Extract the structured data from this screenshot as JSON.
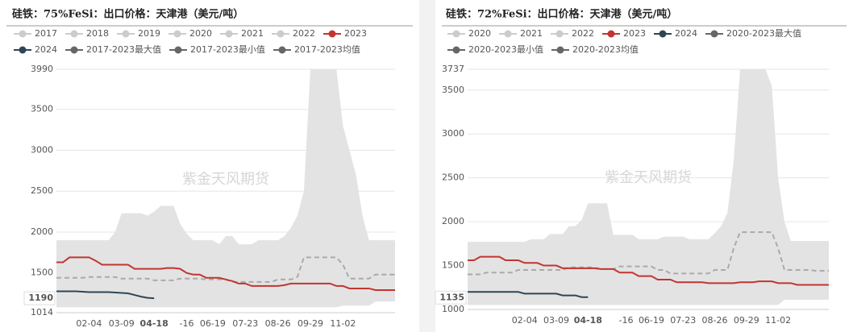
{
  "chart_data": [
    {
      "type": "line",
      "title": "硅铁：75%FeSi：出口价格：天津港（美元/吨）",
      "watermark": "紫金天风期货",
      "band_color": "#e3e3e3",
      "mean_color": "#aaaaaa",
      "grid": true,
      "ylim": [
        1014,
        3990
      ],
      "yticks": [
        1014,
        1500,
        2000,
        2500,
        3000,
        3500,
        3990
      ],
      "y_pointer": 1190,
      "x_pointer": "04-18",
      "categories": [
        null,
        null,
        null,
        null,
        null,
        "02-04",
        null,
        null,
        null,
        null,
        "03-09",
        null,
        null,
        null,
        null,
        "04-18",
        null,
        null,
        null,
        null,
        "-16",
        null,
        null,
        null,
        "06-19",
        null,
        null,
        null,
        null,
        "07-23",
        null,
        null,
        null,
        null,
        "08-26",
        null,
        null,
        null,
        null,
        "09-29",
        null,
        null,
        null,
        null,
        "11-02",
        null,
        null,
        null,
        null,
        null,
        null,
        null,
        null
      ],
      "series": [
        {
          "name": "2017",
          "color": "#cccccc",
          "active": false
        },
        {
          "name": "2018",
          "color": "#cccccc",
          "active": false
        },
        {
          "name": "2019",
          "color": "#cccccc",
          "active": false
        },
        {
          "name": "2020",
          "color": "#cccccc",
          "active": false
        },
        {
          "name": "2021",
          "color": "#cccccc",
          "active": false
        },
        {
          "name": "2022",
          "color": "#cccccc",
          "active": false
        },
        {
          "name": "2023",
          "color": "#c23531",
          "active": true,
          "role": "line",
          "values": [
            1630,
            1630,
            1690,
            1690,
            1690,
            1690,
            1650,
            1600,
            1600,
            1600,
            1600,
            1600,
            1550,
            1550,
            1550,
            1550,
            1550,
            1560,
            1560,
            1550,
            1500,
            1480,
            1480,
            1440,
            1440,
            1440,
            1420,
            1400,
            1370,
            1370,
            1340,
            1340,
            1340,
            1340,
            1340,
            1350,
            1370,
            1370,
            1370,
            1370,
            1370,
            1370,
            1370,
            1340,
            1340,
            1310,
            1310,
            1310,
            1310,
            1290,
            1290,
            1290,
            1290
          ]
        },
        {
          "name": "2024",
          "color": "#2f4554",
          "active": true,
          "role": "line",
          "values": [
            1275,
            1275,
            1275,
            1275,
            1270,
            1265,
            1265,
            1265,
            1265,
            1260,
            1255,
            1250,
            1230,
            1210,
            1195,
            1190,
            null,
            null,
            null,
            null,
            null,
            null,
            null,
            null,
            null,
            null,
            null,
            null,
            null,
            null,
            null,
            null,
            null,
            null,
            null,
            null,
            null,
            null,
            null,
            null,
            null,
            null,
            null,
            null,
            null,
            null,
            null,
            null,
            null,
            null,
            null,
            null,
            null
          ]
        },
        {
          "name": "2017-2023最大值",
          "color": "#666666",
          "active": true,
          "role": "band-max",
          "values": [
            1900,
            1900,
            1900,
            1900,
            1900,
            1900,
            1900,
            1900,
            1900,
            2000,
            2230,
            2230,
            2230,
            2230,
            2200,
            2250,
            2320,
            2320,
            2320,
            2100,
            1980,
            1900,
            1900,
            1900,
            1900,
            1850,
            1950,
            1950,
            1850,
            1850,
            1850,
            1900,
            1900,
            1900,
            1900,
            1950,
            2050,
            2200,
            2500,
            3990,
            3990,
            3990,
            3990,
            3990,
            3300,
            3000,
            2700,
            2200,
            1900,
            1900,
            1900,
            1900,
            1900
          ]
        },
        {
          "name": "2017-2023最小值",
          "color": "#666666",
          "active": true,
          "role": "band-min",
          "values": [
            1080,
            1080,
            1080,
            1080,
            1080,
            1080,
            1080,
            1080,
            1080,
            1080,
            1080,
            1080,
            1080,
            1080,
            1080,
            1080,
            1080,
            1080,
            1080,
            1080,
            1080,
            1080,
            1080,
            1080,
            1080,
            1080,
            1080,
            1080,
            1080,
            1080,
            1080,
            1080,
            1080,
            1080,
            1080,
            1080,
            1080,
            1080,
            1080,
            1080,
            1080,
            1080,
            1080,
            1080,
            1100,
            1100,
            1100,
            1100,
            1100,
            1150,
            1150,
            1150,
            1150
          ]
        },
        {
          "name": "2017-2023均值",
          "color": "#666666",
          "active": true,
          "role": "mean",
          "values": [
            1440,
            1440,
            1440,
            1440,
            1440,
            1450,
            1450,
            1450,
            1450,
            1450,
            1430,
            1430,
            1430,
            1430,
            1430,
            1410,
            1410,
            1410,
            1410,
            1430,
            1430,
            1430,
            1430,
            1420,
            1420,
            1420,
            1420,
            1390,
            1390,
            1390,
            1390,
            1390,
            1390,
            1390,
            1420,
            1420,
            1420,
            1450,
            1690,
            1690,
            1690,
            1690,
            1690,
            1690,
            1600,
            1430,
            1430,
            1430,
            1430,
            1480,
            1480,
            1480,
            1480
          ]
        }
      ]
    },
    {
      "type": "line",
      "title": "硅铁：72%FeSi：出口价格：天津港（美元/吨）",
      "watermark": "紫金天风期货",
      "band_color": "#e3e3e3",
      "mean_color": "#aaaaaa",
      "grid": true,
      "ylim": [
        1000,
        3737
      ],
      "yticks": [
        1000,
        1500,
        2000,
        2500,
        3000,
        3500,
        3737
      ],
      "y_pointer": 1135,
      "x_pointer": "04-18",
      "categories": [
        null,
        null,
        null,
        null,
        null,
        null,
        null,
        null,
        null,
        "02-04",
        null,
        null,
        null,
        null,
        "03-09",
        null,
        null,
        null,
        null,
        "04-18",
        null,
        null,
        null,
        null,
        null,
        "-16",
        null,
        null,
        null,
        "06-19",
        null,
        null,
        null,
        null,
        "07-23",
        null,
        null,
        null,
        null,
        "08-26",
        null,
        null,
        null,
        null,
        "09-29",
        null,
        null,
        null,
        null,
        "11-02",
        null,
        null,
        null,
        null,
        null,
        null,
        null,
        null
      ],
      "series": [
        {
          "name": "2020",
          "color": "#cccccc",
          "active": false
        },
        {
          "name": "2021",
          "color": "#cccccc",
          "active": false
        },
        {
          "name": "2022",
          "color": "#cccccc",
          "active": false
        },
        {
          "name": "2023",
          "color": "#c23531",
          "active": true,
          "role": "line",
          "values": [
            1560,
            1560,
            1600,
            1600,
            1600,
            1600,
            1560,
            1560,
            1560,
            1530,
            1530,
            1530,
            1500,
            1500,
            1500,
            1470,
            1470,
            1470,
            1470,
            1470,
            1470,
            1460,
            1460,
            1460,
            1420,
            1420,
            1420,
            1380,
            1380,
            1380,
            1340,
            1340,
            1340,
            1310,
            1310,
            1310,
            1310,
            1310,
            1300,
            1300,
            1300,
            1300,
            1300,
            1310,
            1310,
            1310,
            1320,
            1320,
            1320,
            1300,
            1300,
            1300,
            1280,
            1280,
            1280,
            1280,
            1280,
            1280
          ]
        },
        {
          "name": "2024",
          "color": "#2f4554",
          "active": true,
          "role": "line",
          "values": [
            1200,
            1200,
            1200,
            1200,
            1200,
            1200,
            1200,
            1200,
            1200,
            1180,
            1180,
            1180,
            1180,
            1180,
            1180,
            1160,
            1160,
            1160,
            1140,
            1140,
            null,
            null,
            null,
            null,
            null,
            null,
            null,
            null,
            null,
            null,
            null,
            null,
            null,
            null,
            null,
            null,
            null,
            null,
            null,
            null,
            null,
            null,
            null,
            null,
            null,
            null,
            null,
            null,
            null,
            null,
            null,
            null,
            null,
            null,
            null,
            null,
            null,
            null
          ]
        },
        {
          "name": "2020-2023最大值",
          "color": "#666666",
          "active": true,
          "role": "band-max",
          "values": [
            1770,
            1770,
            1770,
            1770,
            1770,
            1770,
            1770,
            1770,
            1770,
            1770,
            1800,
            1800,
            1800,
            1860,
            1860,
            1860,
            1950,
            1950,
            2020,
            2210,
            2210,
            2210,
            2210,
            1850,
            1850,
            1850,
            1850,
            1800,
            1800,
            1800,
            1800,
            1830,
            1830,
            1830,
            1830,
            1800,
            1800,
            1800,
            1800,
            1870,
            1950,
            2100,
            2700,
            3737,
            3737,
            3737,
            3737,
            3737,
            3550,
            2500,
            2000,
            1780,
            1780,
            1780,
            1780,
            1780,
            1780,
            1780
          ]
        },
        {
          "name": "2020-2023最小值",
          "color": "#666666",
          "active": true,
          "role": "band-min",
          "values": [
            1050,
            1050,
            1050,
            1050,
            1050,
            1050,
            1050,
            1050,
            1050,
            1050,
            1050,
            1050,
            1050,
            1050,
            1050,
            1050,
            1050,
            1050,
            1050,
            1050,
            1050,
            1050,
            1050,
            1050,
            1050,
            1050,
            1050,
            1050,
            1050,
            1050,
            1050,
            1050,
            1050,
            1050,
            1050,
            1050,
            1050,
            1050,
            1050,
            1050,
            1050,
            1050,
            1050,
            1050,
            1050,
            1050,
            1050,
            1050,
            1050,
            1050,
            1110,
            1110,
            1110,
            1110,
            1110,
            1110,
            1110,
            1110
          ]
        },
        {
          "name": "2020-2023均值",
          "color": "#666666",
          "active": true,
          "role": "mean",
          "values": [
            1400,
            1400,
            1400,
            1420,
            1420,
            1420,
            1420,
            1420,
            1450,
            1450,
            1450,
            1450,
            1450,
            1450,
            1450,
            1450,
            1480,
            1480,
            1480,
            1480,
            1480,
            1460,
            1460,
            1460,
            1490,
            1490,
            1490,
            1490,
            1490,
            1490,
            1450,
            1450,
            1410,
            1410,
            1410,
            1410,
            1410,
            1410,
            1410,
            1450,
            1450,
            1450,
            1700,
            1880,
            1880,
            1880,
            1880,
            1880,
            1880,
            1700,
            1450,
            1450,
            1450,
            1450,
            1450,
            1440,
            1440,
            1440
          ]
        }
      ]
    }
  ]
}
